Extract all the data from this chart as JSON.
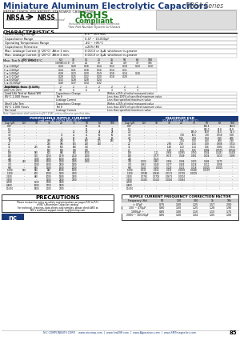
{
  "title": "Miniature Aluminum Electrolytic Capacitors",
  "series": "NRSA Series",
  "subtitle": "RADIAL LEADS, POLARIZED, STANDARD CASE SIZING",
  "rohs_sub": "Includes all homogeneous materials",
  "rohs_note": "*See Part Number System for Details",
  "nrsa_label": "NRSA",
  "nrss_label": "NRSS",
  "nrsa_sub": "Industry standard",
  "nrss_sub": "Condensed sleeved",
  "char_title": "CHARACTERISTICS",
  "char_rows": [
    [
      "Rated Voltage Range",
      "6.3 ~ 100 VDC"
    ],
    [
      "Capacitance Range",
      "0.47 ~ 10,000μF"
    ],
    [
      "Operating Temperature Range",
      "-40 ~ +85°C"
    ],
    [
      "Capacitance Tolerance",
      "±20% (M)"
    ],
    [
      "Max. Leakage Current @ (20°C)  After 1 min.",
      "0.01CV or 3μA  whichever is greater"
    ],
    [
      "Max. Leakage Current @ (20°C)  After 2 min.",
      "0.01CV or 3μA  whichever is greater"
    ]
  ],
  "tan_header": [
    "WV (Volts)",
    "6.3",
    "10",
    "16",
    "25",
    "35",
    "50",
    "63",
    "100"
  ],
  "tan_sub": [
    "16V (V=6.3)",
    "0",
    "13",
    "20",
    "33",
    "44",
    "4.9",
    "79",
    "105"
  ],
  "tan_rows": [
    [
      "C ≤ 1,000μF",
      "0.24",
      "0.20",
      "0.16",
      "0.14",
      "0.12",
      "0.10",
      "0.10",
      "0.10"
    ],
    [
      "C ≤ 2,000μF",
      "0.24",
      "0.21",
      "0.18",
      "0.16",
      "0.14",
      "0.11",
      "",
      ""
    ],
    [
      "C ≤ 3,000μF",
      "0.28",
      "0.23",
      "0.20",
      "0.19",
      "0.18",
      "0.14",
      "0.18",
      ""
    ],
    [
      "C ≤ 5,000μF",
      "0.28",
      "0.25",
      "0.22",
      "0.20",
      "0.18",
      "0.20",
      "",
      ""
    ],
    [
      "C ≤ 8,000μF",
      "0.32",
      "0.28",
      "0.28",
      "0.24",
      "",
      "",
      "",
      ""
    ],
    [
      "C ≤ 10,000μF",
      "0.40",
      "0.37",
      "0.34",
      "0.32",
      "",
      "",
      "",
      ""
    ]
  ],
  "temp_stab_rows": [
    [
      "-25°C/+20°C",
      "2",
      "2",
      "2",
      "2",
      "2",
      "2",
      "2",
      ""
    ],
    [
      "Z-40°C/Z+20°C",
      "10",
      "6",
      "6",
      "4",
      "3",
      "3",
      "3",
      ""
    ]
  ],
  "load_life_rows": [
    [
      "Capacitance Change",
      "Within ±25% of initial measured value"
    ],
    [
      "Tan δ",
      "Less than 200% of specified maximum value"
    ],
    [
      "Leakage Current",
      "Less than specified maximum value"
    ]
  ],
  "shelf_life_rows": [
    [
      "Capacitance Change",
      "Within ±25% of initial measured value"
    ],
    [
      "Tan δ",
      "Less than 200% of specified maximum value"
    ],
    [
      "Leakage Current",
      "Less than specified maximum value"
    ]
  ],
  "note": "Note: Capacitance shall conform to JIS C 5141, unless otherwise specified data",
  "ripple_volt_header": [
    "6.3",
    "10",
    "16",
    "25",
    "35",
    "50",
    "63",
    "100"
  ],
  "ripple_cap_col": [
    "0.47",
    "1.0",
    "2.2",
    "3.3",
    "4.7",
    "10",
    "22",
    "33",
    "47",
    "100",
    "150",
    "220",
    "330",
    "470",
    "680",
    "1,000",
    "1,500",
    "2,200",
    "3,300",
    "4,700",
    "6,800",
    "10,000"
  ],
  "ripple_data": [
    [
      "-",
      "-",
      "-",
      "-",
      "-",
      "10",
      "11",
      "-"
    ],
    [
      "-",
      "-",
      "-",
      "-",
      "-",
      "12",
      "-",
      "35"
    ],
    [
      "-",
      "-",
      "-",
      "-",
      "20",
      "20",
      "28",
      "28"
    ],
    [
      "-",
      "-",
      "-",
      "35",
      "45",
      "45",
      "50",
      "50"
    ],
    [
      "-",
      "-",
      "-",
      "45",
      "55",
      "55",
      "60",
      "60"
    ],
    [
      "-",
      "-",
      "248",
      "280",
      "55",
      "160",
      "175",
      "180"
    ],
    [
      "-",
      "-",
      "290",
      "385",
      "105",
      "240",
      "240",
      "-"
    ],
    [
      "-",
      "215",
      "350",
      "500",
      "180",
      "330",
      "-",
      "-"
    ],
    [
      "-",
      "-",
      "500",
      "600",
      "300",
      "360",
      "-",
      "-"
    ],
    [
      "-",
      "580",
      "800",
      "880",
      "900",
      "1000",
      "-",
      "-"
    ],
    [
      "-",
      "910",
      "1250",
      "1370",
      "2110",
      "2200",
      "-",
      "-"
    ],
    [
      "-",
      "1180",
      "1380",
      "1600",
      "2100",
      "2310",
      "-",
      "-"
    ],
    [
      "240",
      "1380",
      "1500",
      "2000",
      "2300",
      "2700",
      "-",
      "-"
    ],
    [
      "-",
      "1200",
      "1500",
      "2500",
      "2500",
      "-",
      "-",
      "-"
    ],
    [
      "-",
      "860",
      "1380",
      "1500",
      "2000",
      "-",
      "-",
      "-"
    ],
    [
      "570",
      "580",
      "880",
      "1000",
      "1100",
      "-",
      "-",
      "-"
    ],
    [
      "-",
      "800",
      "1000",
      "1300",
      "2100",
      "-",
      "-",
      "-"
    ],
    [
      "-",
      "880",
      "1000",
      "1380",
      "2100",
      "-",
      "-",
      "-"
    ],
    [
      "-",
      "-",
      "1300",
      "2500",
      "2700",
      "-",
      "-",
      "-"
    ],
    [
      "-",
      "1500",
      "1700",
      "2500",
      "-",
      "-",
      "-",
      "-"
    ],
    [
      "-",
      "1600",
      "1750",
      "2500",
      "-",
      "-",
      "-",
      "-"
    ],
    [
      "-",
      "1800",
      "2000",
      "2700",
      "-",
      "-",
      "-",
      "-"
    ]
  ],
  "esr_cap_col": [
    "0.47",
    "1.0",
    "2.2",
    "3.3",
    "4.7",
    "10",
    "22",
    "33",
    "47",
    "100",
    "150",
    "220",
    "330",
    "470",
    "680",
    "1,000",
    "1,500",
    "2,200",
    "3,300",
    "4,700",
    "6,800",
    "10,000"
  ],
  "esr_volt_header": [
    "6.3",
    "10",
    "16",
    "25",
    "35",
    "50",
    "63",
    "100"
  ],
  "esr_data": [
    [
      "-",
      "-",
      "-",
      "-",
      "-",
      "500.5",
      "-",
      "480.8"
    ],
    [
      "-",
      "-",
      "-",
      "-",
      "-",
      "265.0",
      "51.8",
      "66.8"
    ],
    [
      "-",
      "-",
      "-",
      "-",
      "185.0",
      "18.8",
      "15.0",
      "13.3"
    ],
    [
      "-",
      "-",
      "-",
      "7.58",
      "10.5",
      "7.58",
      "0.718",
      "5.08"
    ],
    [
      "-",
      "-",
      "-",
      "8.05",
      "7.04",
      "5.04",
      "5.00",
      "4.06"
    ],
    [
      "-",
      "-",
      "-",
      "7.04",
      "5.50",
      "4.50",
      "4.08",
      "2.98"
    ],
    [
      "-",
      "-",
      "2.38",
      "2.58",
      "1.50",
      "1.08",
      "0.908",
      "0.710"
    ],
    [
      "-",
      "-",
      "1.48",
      "1.43",
      "1.24",
      "1.06",
      "0.080",
      "0.710"
    ],
    [
      "-",
      "-",
      "1.40",
      "1.21",
      "1.05",
      "0.784",
      "0.0575",
      "0.0504"
    ],
    [
      "-",
      "1.11",
      "0.956",
      "0.0895",
      "0.760",
      "0.504",
      "0.0451",
      "0.0408"
    ],
    [
      "-",
      "0.777",
      "0.671",
      "0.549",
      "0.491",
      "0.424",
      "0.210",
      "0.289"
    ],
    [
      "-",
      "0.525",
      "-",
      "-",
      "-",
      "-",
      "-",
      "-"
    ],
    [
      "1.000",
      "0.461",
      "0.356",
      "0.296",
      "0.203",
      "0.186",
      "0.170",
      "-"
    ],
    [
      "0.263",
      "0.240",
      "0.177",
      "0.165",
      "0.118",
      "0.111",
      "0.008",
      "-"
    ],
    [
      "0.141",
      "0.156",
      "0.126",
      "0.121",
      "0.118",
      "0.0005",
      "0.0005",
      "-"
    ],
    [
      "0.131",
      "0.114",
      "0.131",
      "0.0008",
      "0.0406",
      "0.0109",
      "-",
      "-"
    ],
    [
      "0.0589",
      "0.0683",
      "0.0173",
      "0.0708",
      "0.0509",
      "-",
      "-",
      "-"
    ],
    [
      "0.0781",
      "0.0708",
      "0.0673",
      "0.0004",
      "-",
      "-",
      "-",
      "-"
    ],
    [
      "0.0443",
      "0.0414",
      "0.0044",
      "0.0064",
      "-",
      "-",
      "-",
      "-"
    ],
    [
      "-",
      "-",
      "-",
      "-",
      "-",
      "-",
      "-",
      "-"
    ],
    [
      "-",
      "-",
      "-",
      "-",
      "-",
      "-",
      "-",
      "-"
    ],
    [
      "-",
      "-",
      "-",
      "-",
      "-",
      "-",
      "-",
      "-"
    ]
  ],
  "precautions_title": "PRECAUTIONS",
  "ripple_freq_title": "RIPPLE CURRENT FREQUENCY CORRECTION FACTOR",
  "freq_header": [
    "Frequency (Hz)",
    "50",
    "120",
    "300",
    "1k",
    "10k"
  ],
  "freq_rows": [
    [
      "< 47μF",
      "0.75",
      "1.00",
      "1.25",
      "1.57",
      "2.00"
    ],
    [
      "100 ~ 470μF",
      "0.80",
      "1.00",
      "1.25",
      "1.28",
      "1.90"
    ],
    [
      "1000μF ~",
      "0.85",
      "1.00",
      "1.10",
      "1.15",
      "1.75"
    ],
    [
      "2000 ~ 10000μF",
      "0.85",
      "1.00",
      "1.04",
      "1.05",
      "1.00"
    ]
  ],
  "footer_text": "NIC COMPONENTS CORP.    www.niccomp.com  |  www.lowESR.com  |  www.AJpassives.com  |  www.SMTmagnetics.com",
  "page_num": "85",
  "bg_color": "#ffffff",
  "title_color": "#1a3a7a",
  "rohs_color": "#1a7a1a",
  "series_color": "#555555"
}
